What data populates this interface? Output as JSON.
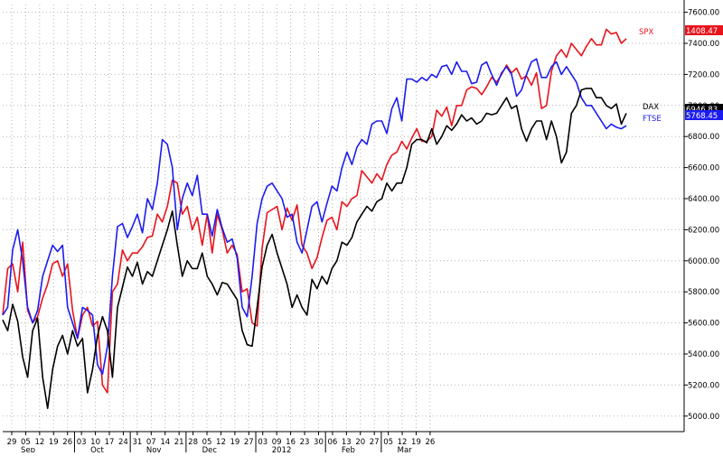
{
  "chart_data": {
    "type": "line",
    "grid": true,
    "y_axis_side": "right",
    "ylim": [
      4900,
      7650
    ],
    "yticks": [
      "7600.00",
      "7400.00",
      "7200.00",
      "7000.00",
      "6800.00",
      "6600.00",
      "6400.00",
      "6200.00",
      "6000.00",
      "5800.00",
      "5600.00",
      "5400.00",
      "5200.00",
      "5000.00"
    ],
    "x_day_ticks": [
      "29",
      "05",
      "12",
      "19",
      "26",
      "03",
      "10",
      "17",
      "24",
      "31",
      "07",
      "14",
      "21",
      "28",
      "05",
      "12",
      "19",
      "27",
      "03",
      "09",
      "16",
      "23",
      "30",
      "06",
      "13",
      "20",
      "27",
      "05",
      "12",
      "19",
      "26"
    ],
    "x_month_labels": [
      "Sep",
      "Oct",
      "Nov",
      "Dec",
      "2012",
      "Feb",
      "Mar"
    ],
    "last_value_labels": [
      {
        "series": "SPX",
        "value": "1408.47",
        "color": "#e8141c"
      },
      {
        "series": "DAX",
        "value": "6946.83",
        "color": "#000000"
      },
      {
        "series": "FTSE",
        "value": "5768.45",
        "color": "#1c1cf0"
      }
    ],
    "series": [
      {
        "name": "SPX",
        "color": "#e8141c",
        "values": [
          5650,
          5950,
          5980,
          5800,
          6120,
          5680,
          5600,
          5640,
          5760,
          5850,
          5980,
          6000,
          5900,
          5980,
          5680,
          5500,
          5650,
          5700,
          5580,
          5610,
          5200,
          5150,
          5800,
          5850,
          6070,
          6000,
          6050,
          6050,
          6090,
          6150,
          6160,
          6300,
          6250,
          6350,
          6520,
          6500,
          6300,
          6350,
          6200,
          6280,
          6100,
          6300,
          6050,
          6300,
          6200,
          6050,
          6100,
          6040,
          5800,
          5820,
          5600,
          5580,
          6080,
          6310,
          6330,
          6350,
          6200,
          6340,
          6260,
          6360,
          6100,
          6050,
          5950,
          6020,
          6150,
          6260,
          6280,
          6200,
          6380,
          6350,
          6400,
          6420,
          6580,
          6540,
          6500,
          6560,
          6520,
          6620,
          6680,
          6700,
          6770,
          6720,
          6790,
          6850,
          6770,
          6770,
          6800,
          6970,
          6930,
          6990,
          6870,
          7000,
          7000,
          7100,
          7120,
          7110,
          7070,
          7120,
          7180,
          7150,
          7200,
          7260,
          7210,
          7240,
          7170,
          7190,
          7130,
          7210,
          6980,
          7000,
          7220,
          7320,
          7360,
          7310,
          7400,
          7360,
          7320,
          7380,
          7430,
          7390,
          7390,
          7490,
          7460,
          7470,
          7400,
          7430
        ]
      },
      {
        "name": "FTSE",
        "color": "#1c1cf0",
        "values": [
          5650,
          5700,
          6070,
          6200,
          6000,
          5700,
          5600,
          5680,
          5900,
          6000,
          6100,
          6060,
          6100,
          5700,
          5600,
          5500,
          5700,
          5680,
          5650,
          5330,
          5270,
          5450,
          5900,
          6220,
          6240,
          6150,
          6220,
          6300,
          6180,
          6400,
          6330,
          6500,
          6780,
          6750,
          6600,
          6200,
          6400,
          6500,
          6420,
          6550,
          6300,
          6300,
          6160,
          6330,
          6210,
          6120,
          6140,
          6020,
          5700,
          5640,
          5900,
          6240,
          6400,
          6480,
          6500,
          6450,
          6400,
          6280,
          6300,
          6120,
          6050,
          6200,
          6350,
          6380,
          6250,
          6370,
          6480,
          6450,
          6600,
          6700,
          6620,
          6730,
          6780,
          6750,
          6880,
          6900,
          6900,
          6820,
          6980,
          7050,
          6900,
          7170,
          7170,
          7150,
          7180,
          7160,
          7200,
          7180,
          7250,
          7260,
          7200,
          7280,
          7220,
          7220,
          7140,
          7150,
          7260,
          7280,
          7200,
          7130,
          7210,
          7250,
          7200,
          7060,
          7100,
          7200,
          7280,
          7300,
          7180,
          7180,
          7250,
          7280,
          7200,
          7250,
          7200,
          7150,
          7050,
          7000,
          7000,
          6950,
          6900,
          6850,
          6880,
          6860,
          6850,
          6870
        ]
      },
      {
        "name": "DAX",
        "color": "#000000",
        "values": [
          5620,
          5550,
          5720,
          5610,
          5380,
          5250,
          5550,
          5630,
          5250,
          5050,
          5300,
          5450,
          5520,
          5400,
          5550,
          5450,
          5500,
          5150,
          5300,
          5520,
          5640,
          5550,
          5250,
          5700,
          5830,
          5960,
          5900,
          5990,
          5850,
          5930,
          5900,
          6000,
          6100,
          6200,
          6320,
          6100,
          5900,
          6000,
          5950,
          5950,
          6050,
          5900,
          5850,
          5780,
          5860,
          5850,
          5800,
          5750,
          5550,
          5460,
          5450,
          5700,
          5960,
          6100,
          6170,
          6050,
          5950,
          5850,
          5700,
          5780,
          5700,
          5650,
          5880,
          5820,
          5900,
          5850,
          5950,
          6000,
          6120,
          6100,
          6150,
          6250,
          6300,
          6350,
          6320,
          6380,
          6400,
          6500,
          6450,
          6500,
          6500,
          6600,
          6750,
          6780,
          6780,
          6760,
          6850,
          6750,
          6800,
          6870,
          6840,
          6880,
          6940,
          6900,
          6920,
          6880,
          6900,
          6950,
          6940,
          6950,
          7000,
          7050,
          6980,
          7000,
          6850,
          6770,
          6850,
          6900,
          6900,
          6780,
          6900,
          6800,
          6630,
          6700,
          6950,
          7000,
          7100,
          7110,
          7110,
          7050,
          7050,
          7000,
          6980,
          7010,
          6880,
          6950
        ]
      }
    ]
  }
}
